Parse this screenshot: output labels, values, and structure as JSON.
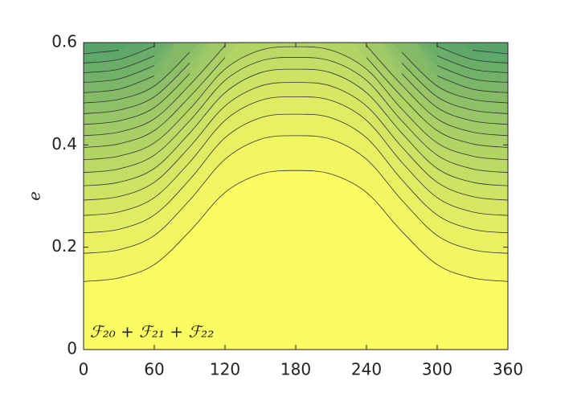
{
  "chart_data": {
    "type": "contour",
    "ylabel": "e",
    "annotation": "ℱ₂₀ + ℱ₂₁ + ℱ₂₂",
    "x": [
      0,
      30,
      60,
      90,
      120,
      150,
      180,
      210,
      240,
      270,
      300,
      330,
      360
    ],
    "series": [
      {
        "values": [
          0.133,
          0.14,
          0.166,
          0.231,
          0.307,
          0.343,
          0.35,
          0.343,
          0.307,
          0.231,
          0.166,
          0.14,
          0.133
        ]
      },
      {
        "values": [
          0.188,
          0.195,
          0.223,
          0.292,
          0.372,
          0.411,
          0.418,
          0.411,
          0.372,
          0.292,
          0.223,
          0.195,
          0.188
        ]
      },
      {
        "values": [
          0.228,
          0.235,
          0.263,
          0.332,
          0.414,
          0.453,
          0.46,
          0.453,
          0.414,
          0.332,
          0.263,
          0.235,
          0.228
        ]
      },
      {
        "values": [
          0.262,
          0.269,
          0.297,
          0.366,
          0.448,
          0.487,
          0.494,
          0.487,
          0.448,
          0.366,
          0.297,
          0.269,
          0.262
        ]
      },
      {
        "values": [
          0.292,
          0.299,
          0.327,
          0.396,
          0.476,
          0.515,
          0.522,
          0.515,
          0.476,
          0.396,
          0.327,
          0.299,
          0.292
        ]
      },
      {
        "values": [
          0.32,
          0.327,
          0.354,
          0.423,
          0.502,
          0.541,
          0.548,
          0.541,
          0.502,
          0.423,
          0.354,
          0.327,
          0.32
        ]
      },
      {
        "values": [
          0.346,
          0.353,
          0.38,
          0.447,
          0.526,
          0.564,
          0.571,
          0.564,
          0.526,
          0.447,
          0.38,
          0.353,
          0.346
        ]
      },
      {
        "values": [
          0.371,
          0.378,
          0.404,
          0.47,
          0.548,
          0.585,
          0.592,
          0.585,
          0.548,
          0.47,
          0.404,
          0.378,
          0.371
        ]
      },
      {
        "values": [
          0.395,
          0.402,
          0.428,
          0.494,
          0.571,
          null,
          null,
          null,
          0.571,
          0.494,
          0.428,
          0.402,
          0.395
        ]
      },
      {
        "values": [
          0.418,
          0.425,
          0.451,
          0.517,
          0.594,
          null,
          null,
          null,
          0.594,
          0.517,
          0.451,
          0.425,
          0.418
        ]
      },
      {
        "values": [
          0.44,
          0.447,
          0.473,
          0.539,
          null,
          null,
          null,
          null,
          null,
          0.539,
          0.473,
          0.447,
          0.44
        ]
      },
      {
        "values": [
          0.461,
          0.468,
          0.494,
          0.56,
          null,
          null,
          null,
          null,
          null,
          0.56,
          0.494,
          0.468,
          0.461
        ]
      },
      {
        "values": [
          0.482,
          0.489,
          0.515,
          0.581,
          null,
          null,
          null,
          null,
          null,
          0.581,
          0.515,
          0.489,
          0.482
        ]
      },
      {
        "values": [
          0.502,
          0.509,
          0.535,
          null,
          null,
          null,
          null,
          null,
          null,
          null,
          0.535,
          0.509,
          0.502
        ]
      },
      {
        "values": [
          0.522,
          0.529,
          0.555,
          null,
          null,
          null,
          null,
          null,
          null,
          null,
          0.555,
          0.529,
          0.522
        ]
      },
      {
        "values": [
          0.541,
          0.548,
          0.574,
          null,
          null,
          null,
          null,
          null,
          null,
          null,
          0.574,
          0.548,
          0.541
        ]
      },
      {
        "values": [
          0.56,
          0.567,
          0.593,
          null,
          null,
          null,
          null,
          null,
          null,
          null,
          0.593,
          0.567,
          0.56
        ]
      },
      {
        "values": [
          0.578,
          0.585,
          null,
          null,
          null,
          null,
          null,
          null,
          null,
          null,
          null,
          0.585,
          0.578
        ]
      },
      {
        "values": [
          0.596,
          null,
          null,
          null,
          null,
          null,
          null,
          null,
          null,
          null,
          null,
          null,
          0.596
        ]
      }
    ],
    "colormap": [
      "#fbfb62",
      "#4e9e6a"
    ],
    "line_color": "#333333",
    "xlim": [
      0,
      360
    ],
    "xticks": [
      0,
      60,
      120,
      180,
      240,
      300,
      360
    ],
    "ylim": [
      0,
      0.6
    ],
    "yticks": [
      0,
      0.2,
      0.4,
      0.6
    ]
  }
}
